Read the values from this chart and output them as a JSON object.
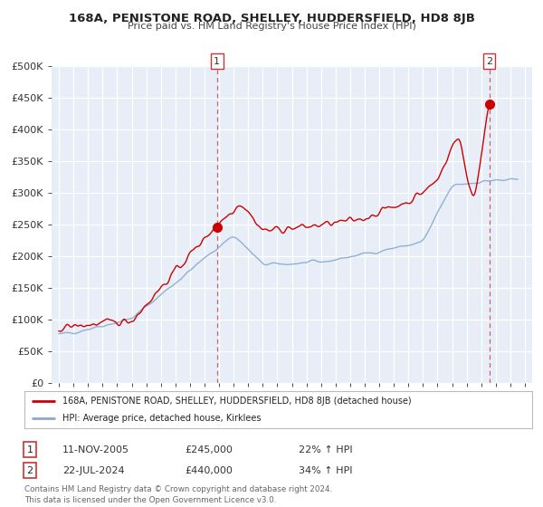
{
  "title": "168A, PENISTONE ROAD, SHELLEY, HUDDERSFIELD, HD8 8JB",
  "subtitle": "Price paid vs. HM Land Registry's House Price Index (HPI)",
  "background_color": "#ffffff",
  "plot_bg_color": "#e8eef8",
  "grid_color": "#ffffff",
  "house_color": "#cc0000",
  "hpi_color": "#88aacc",
  "vline_color": "#cc6666",
  "ylim": [
    0,
    500000
  ],
  "ytick_values": [
    0,
    50000,
    100000,
    150000,
    200000,
    250000,
    300000,
    350000,
    400000,
    450000,
    500000
  ],
  "ytick_labels": [
    "£0",
    "£50K",
    "£100K",
    "£150K",
    "£200K",
    "£250K",
    "£300K",
    "£350K",
    "£400K",
    "£450K",
    "£500K"
  ],
  "xlim_start": 1994.5,
  "xlim_end": 2027.5,
  "xtick_years": [
    1995,
    1996,
    1997,
    1998,
    1999,
    2000,
    2001,
    2002,
    2003,
    2004,
    2005,
    2006,
    2007,
    2008,
    2009,
    2010,
    2011,
    2012,
    2013,
    2014,
    2015,
    2016,
    2017,
    2018,
    2019,
    2020,
    2021,
    2022,
    2023,
    2024,
    2025,
    2026,
    2027
  ],
  "marker1_x": 2005.86,
  "marker1_y": 245000,
  "marker2_x": 2024.55,
  "marker2_y": 440000,
  "legend_house_label": "168A, PENISTONE ROAD, SHELLEY, HUDDERSFIELD, HD8 8JB (detached house)",
  "legend_hpi_label": "HPI: Average price, detached house, Kirklees",
  "annotation1_box": "1",
  "annotation1_date": "11-NOV-2005",
  "annotation1_price": "£245,000",
  "annotation1_hpi": "22% ↑ HPI",
  "annotation2_box": "2",
  "annotation2_date": "22-JUL-2024",
  "annotation2_price": "£440,000",
  "annotation2_hpi": "34% ↑ HPI",
  "footer": "Contains HM Land Registry data © Crown copyright and database right 2024.\nThis data is licensed under the Open Government Licence v3.0."
}
